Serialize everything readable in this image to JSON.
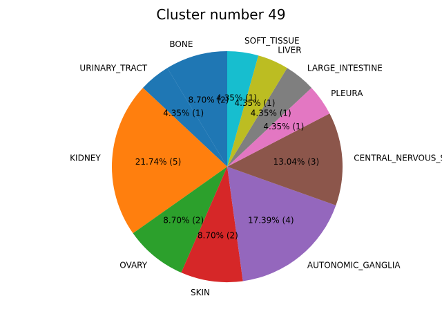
{
  "chart_data": {
    "type": "pie",
    "title": "Cluster number 49",
    "start_angle_deg": 90,
    "direction": "counterclockwise",
    "slices": [
      {
        "label": "BONE",
        "value": 2,
        "percent_label": "8.70%  (2)",
        "color": "#1f77b4"
      },
      {
        "label": "URINARY_TRACT",
        "value": 1,
        "percent_label": "4.35%  (1)",
        "color": "#1f77b4"
      },
      {
        "label": "KIDNEY",
        "value": 5,
        "percent_label": "21.74%  (5)",
        "color": "#ff7f0e"
      },
      {
        "label": "OVARY",
        "value": 2,
        "percent_label": "8.70%  (2)",
        "color": "#2ca02c"
      },
      {
        "label": "SKIN",
        "value": 2,
        "percent_label": "8.70%  (2)",
        "color": "#d62728"
      },
      {
        "label": "AUTONOMIC_GANGLIA",
        "value": 4,
        "percent_label": "17.39%  (4)",
        "color": "#9467bd"
      },
      {
        "label": "CENTRAL_NERVOUS_SYSTEM",
        "value": 3,
        "percent_label": "13.04%  (3)",
        "color": "#8c564b"
      },
      {
        "label": "PLEURA",
        "value": 1,
        "percent_label": "4.35%  (1)",
        "color": "#e377c2"
      },
      {
        "label": "LARGE_INTESTINE",
        "value": 1,
        "percent_label": "4.35%  (1)",
        "color": "#7f7f7f"
      },
      {
        "label": "LIVER",
        "value": 1,
        "percent_label": "4.35%  (1)",
        "color": "#bcbd22"
      },
      {
        "label": "SOFT_TISSUE",
        "value": 1,
        "percent_label": "4.35%  (1)",
        "color": "#17becf"
      }
    ]
  }
}
